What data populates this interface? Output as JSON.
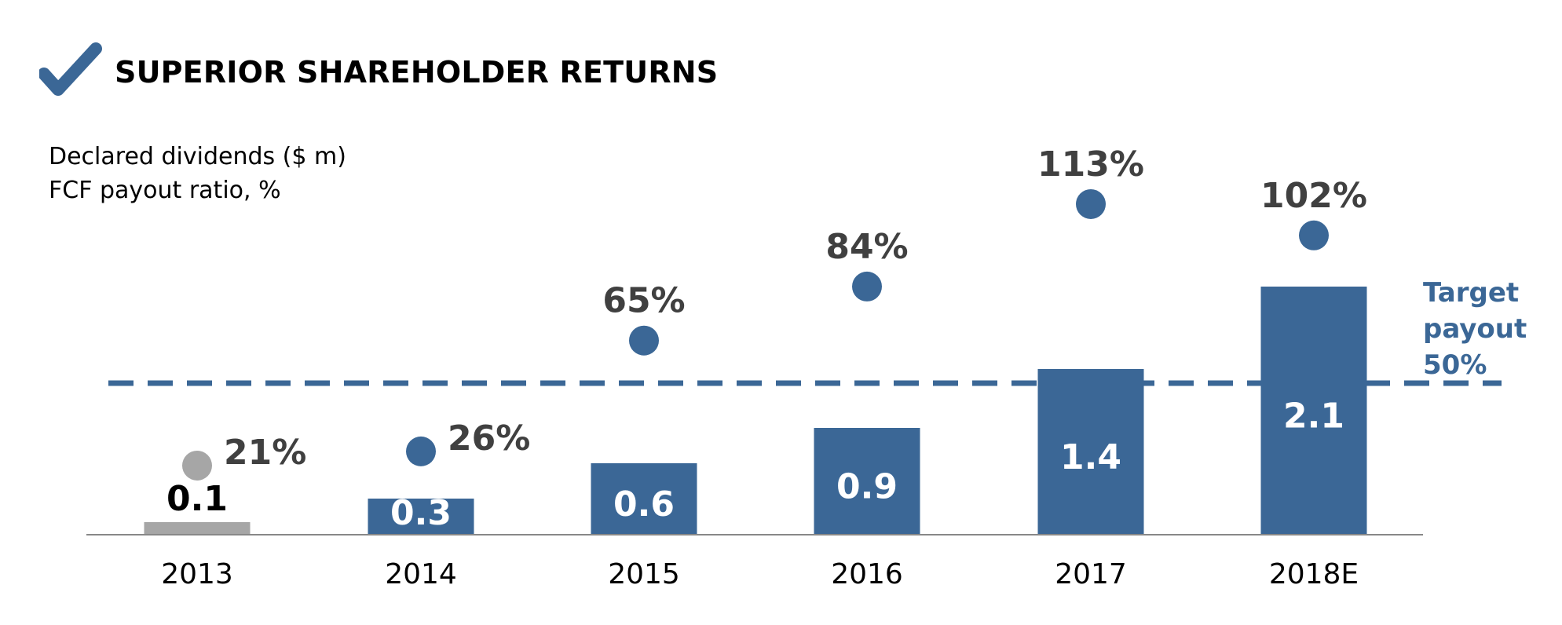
{
  "header": {
    "title": "SUPERIOR SHAREHOLDER RETURNS",
    "icon": "checkmark-icon"
  },
  "legend": {
    "line1": "Declared dividends ($ m)",
    "line2": "FCF payout ratio, %"
  },
  "target": {
    "line1": "Target",
    "line2": "payout",
    "line3": "50%"
  },
  "colors": {
    "bar": "#3b6796",
    "bar_actual_first": "#a6a6a6",
    "marker_first": "#a6a6a6",
    "marker": "#3b6796",
    "target_line": "#3b6796",
    "label_dark": "#404040"
  },
  "chart_data": {
    "type": "bar",
    "categories": [
      "2013",
      "2014",
      "2015",
      "2016",
      "2017",
      "2018E"
    ],
    "series": [
      {
        "values": [
          0.1,
          0.3,
          0.6,
          0.9,
          1.4,
          2.1
        ],
        "labels": [
          "0.1",
          "0.3",
          "0.6",
          "0.9",
          "1.4",
          "2.1"
        ]
      },
      {
        "type": "scatter",
        "values": [
          21,
          26,
          65,
          84,
          113,
          102
        ],
        "labels": [
          "21%",
          "26%",
          "65%",
          "84%",
          "113%",
          "102%"
        ]
      }
    ],
    "target_payout": 50,
    "axes": {
      "x_visible": true,
      "y_visible": false
    },
    "grid": false
  }
}
